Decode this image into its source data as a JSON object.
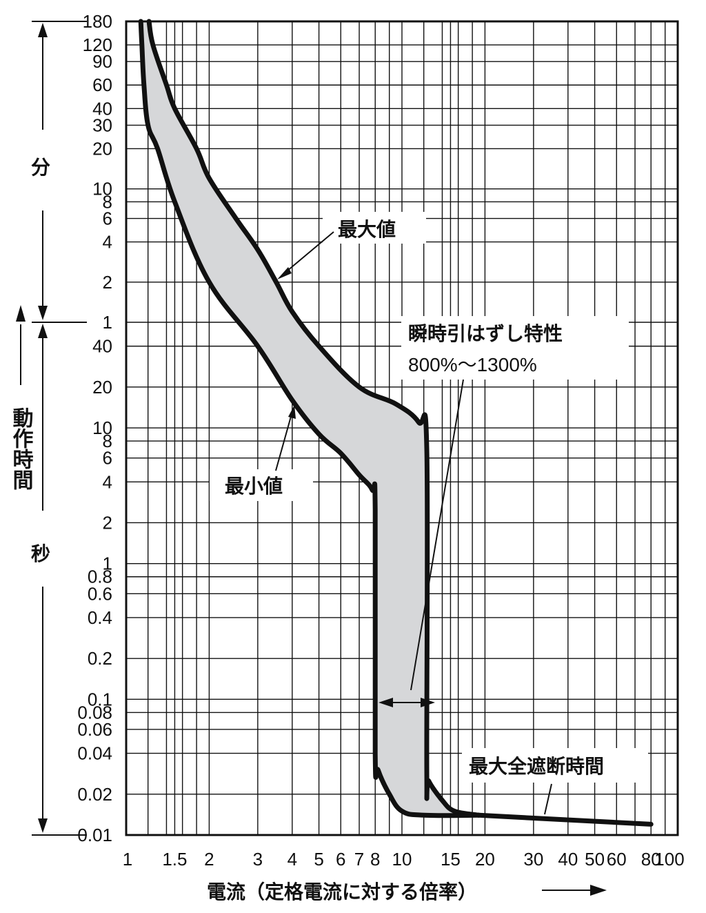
{
  "chart_data": {
    "type": "area",
    "x_scale": "log",
    "xlabel": "電流（定格電流に対する倍率）",
    "x_ticks": [
      "1",
      "1.5",
      "2",
      "3",
      "4",
      "5",
      "6",
      "7",
      "8",
      "10",
      "15",
      "20",
      "30",
      "40",
      "50",
      "60",
      "80",
      "100"
    ],
    "y_ticks_minutes": [
      "180",
      "120",
      "90",
      "60",
      "40",
      "30",
      "20",
      "10",
      "8",
      "6",
      "4",
      "2",
      "1"
    ],
    "y_ticks_seconds": [
      "40",
      "20",
      "10",
      "8",
      "6",
      "4",
      "2",
      "1",
      "0.8",
      "0.6",
      "0.4",
      "0.2",
      "0.1",
      "0.08",
      "0.06",
      "0.04",
      "0.02",
      "0.01"
    ],
    "ylabel_main": "動作時間",
    "ylabel_minutes": "分",
    "ylabel_seconds": "秒",
    "series": [
      {
        "name": "最大値",
        "points": [
          {
            "x": 1.21,
            "t": "180 min"
          },
          {
            "x": 1.25,
            "t": "120 min"
          },
          {
            "x": 1.4,
            "t": "60 min"
          },
          {
            "x": 1.5,
            "t": "40 min"
          },
          {
            "x": 1.8,
            "t": "20 min"
          },
          {
            "x": 2.0,
            "t": "12 min"
          },
          {
            "x": 2.5,
            "t": "6 min"
          },
          {
            "x": 3.0,
            "t": "3.5 min"
          },
          {
            "x": 3.5,
            "t": "2 min"
          },
          {
            "x": 4.0,
            "t": "1.2 min"
          },
          {
            "x": 5.0,
            "t": "40 s"
          },
          {
            "x": 7.0,
            "t": "20 s"
          },
          {
            "x": 9.5,
            "t": "15 s"
          },
          {
            "x": 11.5,
            "t": "11 s"
          },
          {
            "x": 12.3,
            "t": "7 s"
          },
          {
            "x": 12.3,
            "t": "0.03 s"
          },
          {
            "x": 12.5,
            "t": "0.025 s"
          },
          {
            "x": 14.0,
            "t": "0.018 s"
          },
          {
            "x": 15.5,
            "t": "0.015 s"
          },
          {
            "x": 19.0,
            "t": "0.014 s"
          }
        ]
      },
      {
        "name": "最小値",
        "points": [
          {
            "x": 1.13,
            "t": "180 min"
          },
          {
            "x": 1.14,
            "t": "120 min"
          },
          {
            "x": 1.16,
            "t": "60 min"
          },
          {
            "x": 1.2,
            "t": "30 min"
          },
          {
            "x": 1.3,
            "t": "20 min"
          },
          {
            "x": 1.5,
            "t": "8 min"
          },
          {
            "x": 2.0,
            "t": "2 min"
          },
          {
            "x": 3.0,
            "t": "40 s"
          },
          {
            "x": 4.0,
            "t": "16 s"
          },
          {
            "x": 5.0,
            "t": "9 s"
          },
          {
            "x": 6.0,
            "t": "6.5 s"
          },
          {
            "x": 7.0,
            "t": "4.5 s"
          },
          {
            "x": 7.8,
            "t": "3.5 s"
          },
          {
            "x": 8.0,
            "t": "2.5 s"
          },
          {
            "x": 8.0,
            "t": "0.04 s"
          },
          {
            "x": 8.2,
            "t": "0.03 s"
          },
          {
            "x": 9.0,
            "t": "0.02 s"
          },
          {
            "x": 10.0,
            "t": "0.015 s"
          },
          {
            "x": 12.0,
            "t": "0.014 s"
          },
          {
            "x": 19.0,
            "t": "0.014 s"
          }
        ]
      },
      {
        "name": "最大全遮断時間",
        "points": [
          {
            "x": 19.0,
            "t": "0.014 s"
          },
          {
            "x": 80.0,
            "t": "0.012 s"
          }
        ]
      }
    ],
    "annotations": [
      {
        "text": "最大値"
      },
      {
        "text": "最小値"
      },
      {
        "text": "瞬時引はずし特性",
        "subtext": "800%〜1300%"
      },
      {
        "text": "最大全遮断時間"
      }
    ],
    "grid": true,
    "xlim": [
      1,
      100
    ],
    "ylim": [
      "0.01 s",
      "180 min"
    ]
  }
}
